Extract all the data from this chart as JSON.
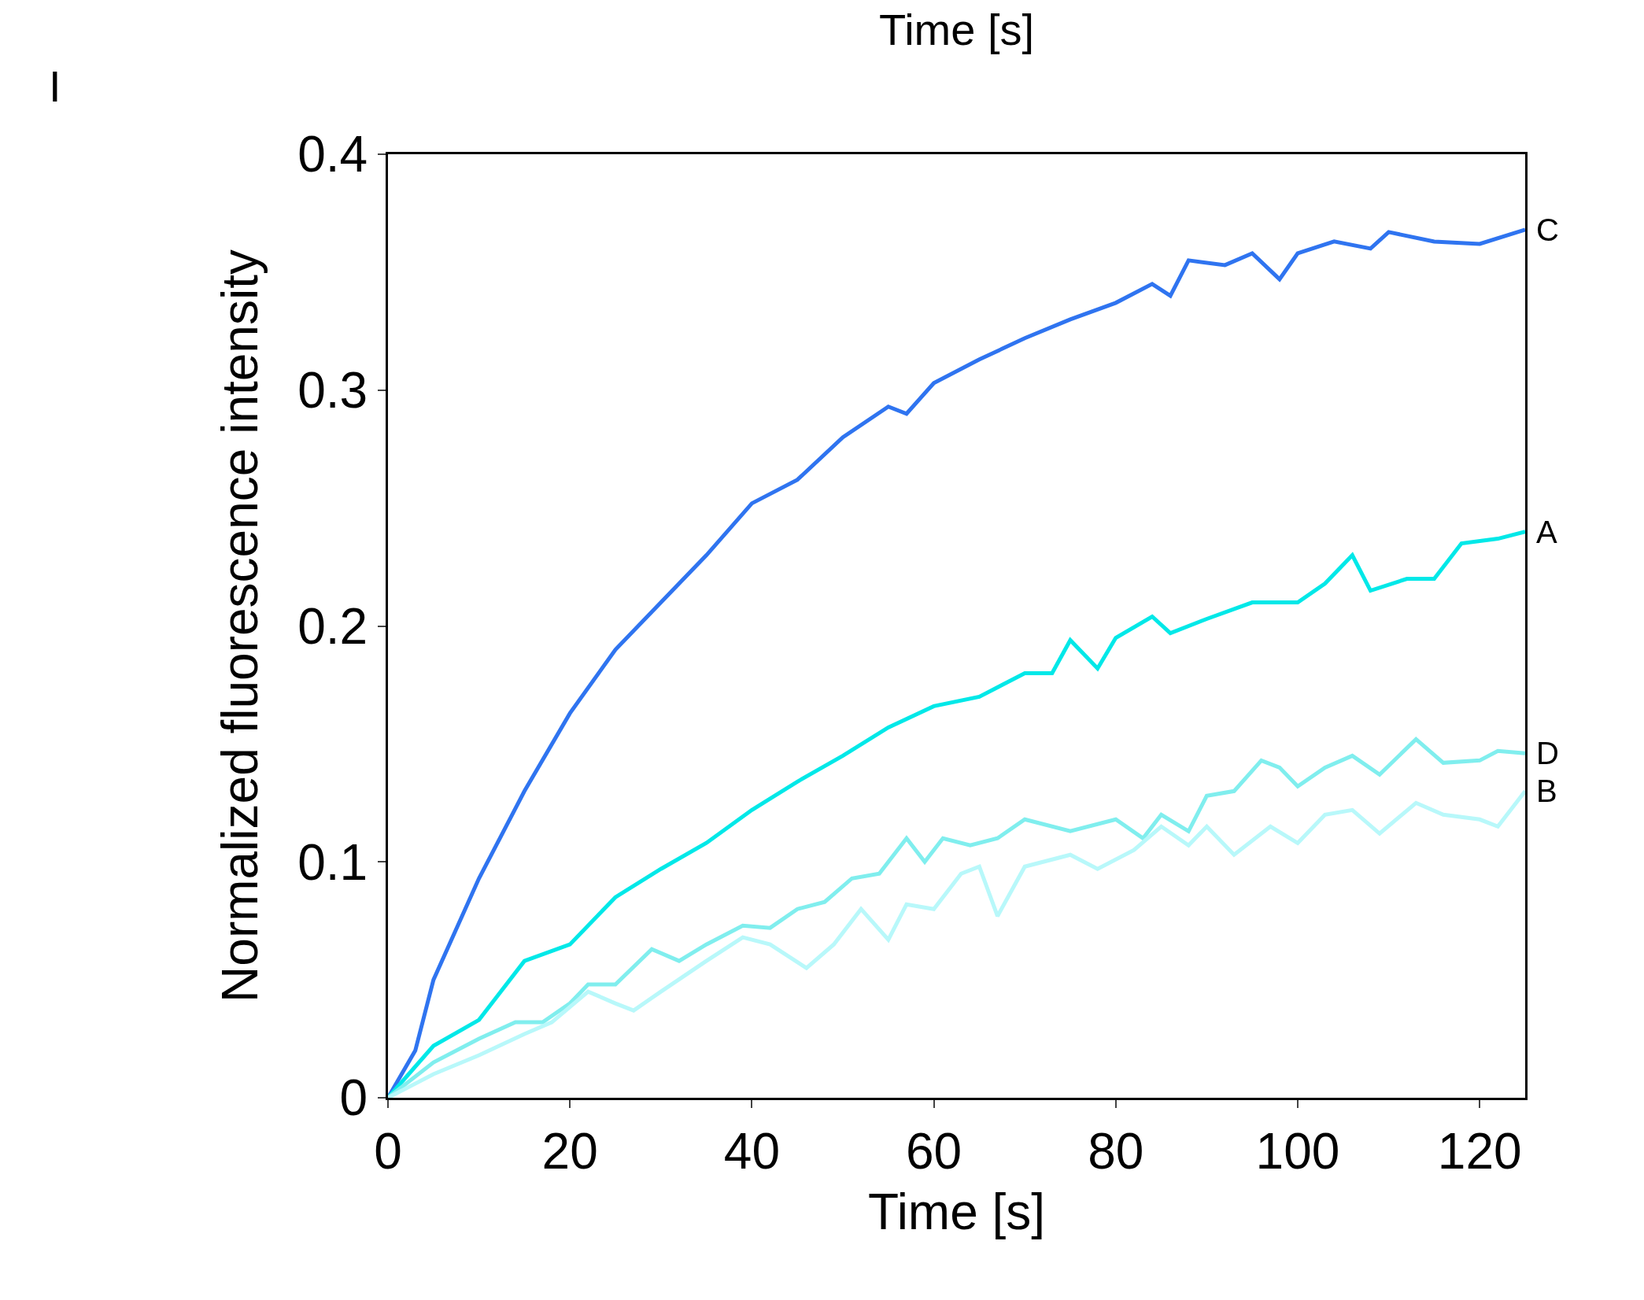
{
  "chart_data": {
    "type": "line",
    "xlabel": "Time [s]",
    "ylabel": "Normalized fluorescence intensity",
    "annotations": [
      "Time [s]",
      "I"
    ],
    "xlim": [
      0,
      125
    ],
    "xticks": [
      0,
      20,
      40,
      60,
      80,
      100,
      120
    ],
    "ylim": [
      0,
      0.4
    ],
    "yticks": [
      0,
      0.1,
      0.2,
      0.3,
      0.4
    ],
    "legend": false,
    "series": [
      {
        "name": "C",
        "color": "#2f74f0",
        "x": [
          0,
          3,
          5,
          10,
          15,
          20,
          25,
          30,
          35,
          40,
          45,
          50,
          55,
          57,
          60,
          65,
          70,
          75,
          80,
          84,
          86,
          88,
          92,
          95,
          98,
          100,
          104,
          108,
          110,
          115,
          120,
          125
        ],
        "values": [
          0,
          0.02,
          0.05,
          0.093,
          0.13,
          0.163,
          0.19,
          0.21,
          0.23,
          0.252,
          0.262,
          0.28,
          0.293,
          0.29,
          0.303,
          0.313,
          0.322,
          0.33,
          0.337,
          0.345,
          0.34,
          0.355,
          0.353,
          0.358,
          0.347,
          0.358,
          0.363,
          0.36,
          0.367,
          0.363,
          0.362,
          0.368
        ]
      },
      {
        "name": "A",
        "color": "#00e8e8",
        "x": [
          0,
          5,
          10,
          15,
          20,
          25,
          30,
          35,
          40,
          45,
          50,
          55,
          60,
          65,
          70,
          73,
          75,
          78,
          80,
          84,
          86,
          90,
          95,
          100,
          103,
          106,
          108,
          112,
          115,
          118,
          122,
          125
        ],
        "values": [
          0,
          0.022,
          0.033,
          0.058,
          0.065,
          0.085,
          0.097,
          0.108,
          0.122,
          0.134,
          0.145,
          0.157,
          0.166,
          0.17,
          0.18,
          0.18,
          0.194,
          0.182,
          0.195,
          0.204,
          0.197,
          0.203,
          0.21,
          0.21,
          0.218,
          0.23,
          0.215,
          0.22,
          0.22,
          0.235,
          0.237,
          0.24
        ]
      },
      {
        "name": "D",
        "color": "#80eeee",
        "x": [
          0,
          5,
          10,
          14,
          17,
          20,
          22,
          25,
          29,
          32,
          35,
          39,
          42,
          45,
          48,
          51,
          54,
          57,
          59,
          61,
          64,
          67,
          70,
          75,
          80,
          83,
          85,
          88,
          90,
          93,
          96,
          98,
          100,
          103,
          106,
          109,
          113,
          116,
          120,
          122,
          125
        ],
        "values": [
          0,
          0.015,
          0.025,
          0.032,
          0.032,
          0.04,
          0.048,
          0.048,
          0.063,
          0.058,
          0.065,
          0.073,
          0.072,
          0.08,
          0.083,
          0.093,
          0.095,
          0.11,
          0.1,
          0.11,
          0.107,
          0.11,
          0.118,
          0.113,
          0.118,
          0.11,
          0.12,
          0.113,
          0.128,
          0.13,
          0.143,
          0.14,
          0.132,
          0.14,
          0.145,
          0.137,
          0.152,
          0.142,
          0.143,
          0.147,
          0.146
        ]
      },
      {
        "name": "B",
        "color": "#b8f8fa",
        "x": [
          0,
          5,
          10,
          15,
          18,
          22,
          25,
          27,
          30,
          35,
          39,
          42,
          46,
          49,
          52,
          55,
          57,
          60,
          63,
          65,
          67,
          70,
          75,
          78,
          82,
          85,
          88,
          90,
          93,
          97,
          100,
          103,
          106,
          109,
          113,
          116,
          120,
          122,
          125
        ],
        "values": [
          0,
          0.01,
          0.018,
          0.027,
          0.032,
          0.045,
          0.04,
          0.037,
          0.045,
          0.058,
          0.068,
          0.065,
          0.055,
          0.065,
          0.08,
          0.067,
          0.082,
          0.08,
          0.095,
          0.098,
          0.077,
          0.098,
          0.103,
          0.097,
          0.105,
          0.115,
          0.107,
          0.115,
          0.103,
          0.115,
          0.108,
          0.12,
          0.122,
          0.112,
          0.125,
          0.12,
          0.118,
          0.115,
          0.13
        ]
      }
    ]
  }
}
